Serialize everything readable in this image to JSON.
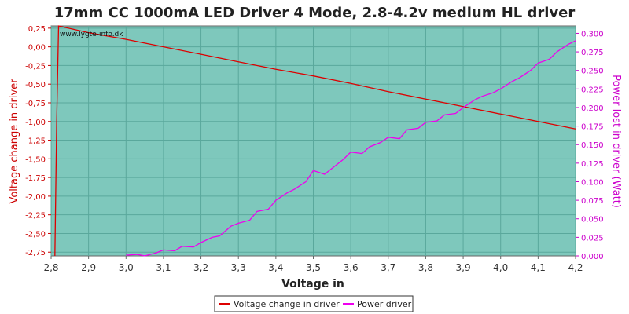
{
  "chart_data": {
    "type": "line",
    "title": "17mm CC 1000mA LED Driver 4 Mode, 2.8-4.2v medium HL driver",
    "watermark": "www.lygte-info.dk",
    "xlabel": "Voltage in",
    "ylabel_left": "Voltage change in driver",
    "ylabel_right": "Power lost in driver (Watt)",
    "xlim": [
      2.8,
      4.2
    ],
    "ylim_left": [
      -2.8,
      0.28
    ],
    "ylim_right": [
      0.0,
      0.31
    ],
    "x_ticks": [
      "2,8",
      "2,9",
      "3,0",
      "3,1",
      "3,2",
      "3,3",
      "3,4",
      "3,5",
      "3,6",
      "3,7",
      "3,8",
      "3,9",
      "4,0",
      "4,1",
      "4,2"
    ],
    "x_tick_values": [
      2.8,
      2.9,
      3.0,
      3.1,
      3.2,
      3.3,
      3.4,
      3.5,
      3.6,
      3.7,
      3.8,
      3.9,
      4.0,
      4.1,
      4.2
    ],
    "y_left_ticks": [
      "0,25",
      "0,00",
      "-0,25",
      "-0,50",
      "-0,75",
      "-1,00",
      "-1,25",
      "-1,50",
      "-1,75",
      "-2,00",
      "-2,25",
      "-2,50",
      "-2,75"
    ],
    "y_left_tick_values": [
      0.25,
      0.0,
      -0.25,
      -0.5,
      -0.75,
      -1.0,
      -1.25,
      -1.5,
      -1.75,
      -2.0,
      -2.25,
      -2.5,
      -2.75
    ],
    "y_right_ticks": [
      "0,300",
      "0,275",
      "0,250",
      "0,225",
      "0,200",
      "0,175",
      "0,150",
      "0,125",
      "0,100",
      "0,075",
      "0,050",
      "0,025",
      "0,000"
    ],
    "y_right_tick_values": [
      0.3,
      0.275,
      0.25,
      0.225,
      0.2,
      0.175,
      0.15,
      0.125,
      0.1,
      0.075,
      0.05,
      0.025,
      0.0
    ],
    "grid": true,
    "legend_position": "bottom-center",
    "colors": {
      "plot_bg": "#7ec8bc",
      "voltage_line": "#dd0000",
      "power_line": "#ee00ee",
      "left_axis": "#cc0000",
      "right_axis": "#cc00cc"
    },
    "series": [
      {
        "name": "Voltage change in driver",
        "axis": "left",
        "x": [
          2.81,
          2.815,
          2.82,
          2.9,
          3.0,
          3.1,
          3.2,
          3.3,
          3.4,
          3.5,
          3.6,
          3.7,
          3.8,
          3.9,
          4.0,
          4.1,
          4.2
        ],
        "y": [
          -2.8,
          -1.0,
          0.28,
          0.19,
          0.1,
          0.0,
          -0.1,
          -0.2,
          -0.3,
          -0.39,
          -0.49,
          -0.6,
          -0.7,
          -0.8,
          -0.9,
          -1.0,
          -1.1
        ]
      },
      {
        "name": "Power driver",
        "axis": "right",
        "x": [
          3.0,
          3.03,
          3.05,
          3.08,
          3.1,
          3.13,
          3.15,
          3.18,
          3.2,
          3.23,
          3.25,
          3.28,
          3.3,
          3.33,
          3.35,
          3.38,
          3.4,
          3.43,
          3.45,
          3.48,
          3.5,
          3.53,
          3.55,
          3.58,
          3.6,
          3.63,
          3.65,
          3.68,
          3.7,
          3.73,
          3.75,
          3.78,
          3.8,
          3.83,
          3.85,
          3.88,
          3.9,
          3.93,
          3.95,
          3.98,
          4.0,
          4.03,
          4.05,
          4.08,
          4.1,
          4.13,
          4.15,
          4.18,
          4.2
        ],
        "y": [
          0.001,
          0.002,
          0.0,
          0.004,
          0.008,
          0.007,
          0.013,
          0.012,
          0.018,
          0.025,
          0.027,
          0.04,
          0.044,
          0.048,
          0.06,
          0.063,
          0.075,
          0.085,
          0.09,
          0.1,
          0.115,
          0.11,
          0.118,
          0.13,
          0.14,
          0.138,
          0.147,
          0.153,
          0.16,
          0.158,
          0.17,
          0.172,
          0.18,
          0.182,
          0.19,
          0.192,
          0.2,
          0.21,
          0.215,
          0.22,
          0.225,
          0.235,
          0.24,
          0.25,
          0.26,
          0.265,
          0.275,
          0.285,
          0.29
        ]
      }
    ]
  }
}
